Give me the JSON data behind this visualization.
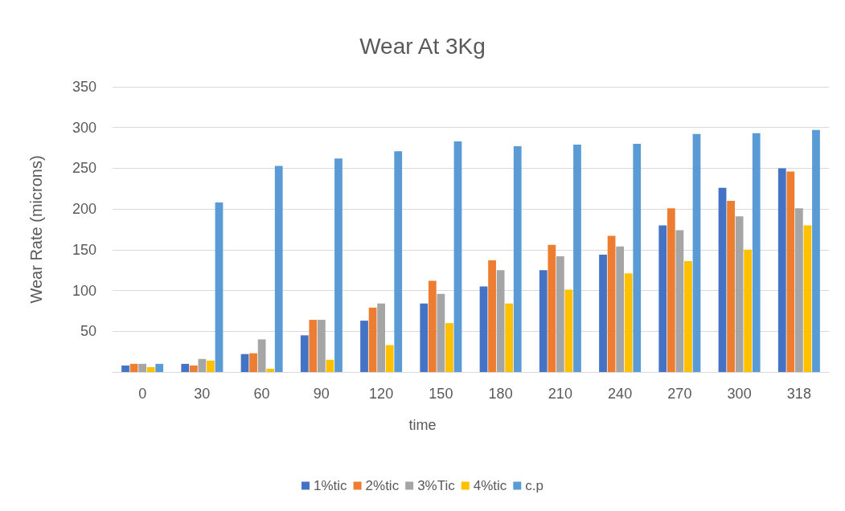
{
  "chart_data": {
    "type": "bar",
    "title": "Wear At 3Kg",
    "xlabel": "time",
    "ylabel": "Wear Rate (microns)",
    "categories": [
      "0",
      "30",
      "60",
      "90",
      "120",
      "150",
      "180",
      "210",
      "240",
      "270",
      "300",
      "318"
    ],
    "series": [
      {
        "name": "1%tic",
        "color": "#4472c4",
        "values": [
          8,
          10,
          22,
          45,
          63,
          84,
          105,
          125,
          144,
          180,
          226,
          250
        ]
      },
      {
        "name": "2%tic",
        "color": "#ed7d31",
        "values": [
          10,
          8,
          23,
          64,
          79,
          112,
          137,
          156,
          167,
          201,
          210,
          246
        ]
      },
      {
        "name": "3%Tic",
        "color": "#a5a5a5",
        "values": [
          10,
          16,
          40,
          64,
          84,
          96,
          125,
          142,
          154,
          174,
          191,
          201
        ]
      },
      {
        "name": "4%tic",
        "color": "#ffc000",
        "values": [
          6,
          14,
          4,
          15,
          33,
          60,
          84,
          101,
          121,
          136,
          150,
          180
        ]
      },
      {
        "name": "c.p",
        "color": "#5b9bd5",
        "values": [
          10,
          208,
          253,
          262,
          271,
          283,
          277,
          279,
          280,
          292,
          293,
          297
        ]
      }
    ],
    "ylim": [
      0,
      350
    ],
    "yticks": [
      {
        "value": 0,
        "label": null
      },
      50,
      100,
      150,
      200,
      250,
      300,
      350
    ],
    "grid": "y",
    "legend": "bottom"
  }
}
